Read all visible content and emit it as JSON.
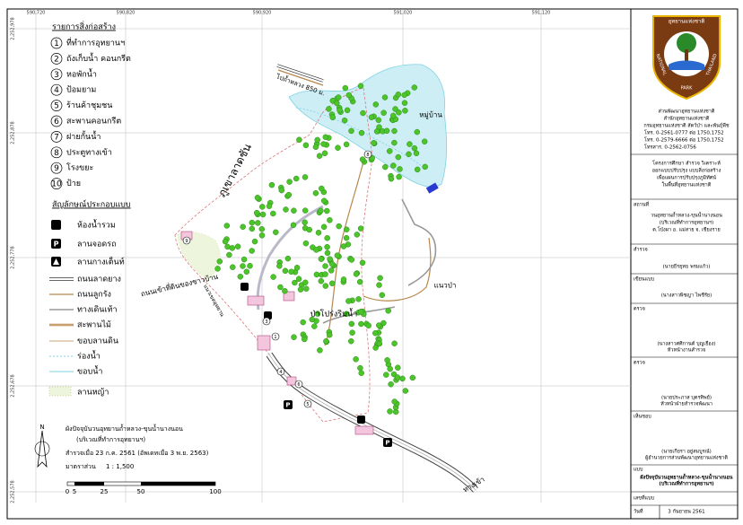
{
  "grid": {
    "x_labels": [
      "590,720",
      "590,820",
      "590,920",
      "591,020",
      "591,120"
    ],
    "y_labels": [
      "2,252,978",
      "2,252,878",
      "2,252,778",
      "2,252,678",
      "2,252,578"
    ]
  },
  "legend_buildings": {
    "title": "รายการสิ่งก่อสร้าง",
    "items": [
      {
        "number": "1",
        "label": "ที่ทำการอุทยานฯ"
      },
      {
        "number": "2",
        "label": "ถังเก็บน้ำ คอนกรีต"
      },
      {
        "number": "3",
        "label": "หอพักน้ำ"
      },
      {
        "number": "4",
        "label": "ป้อมยาม"
      },
      {
        "number": "5",
        "label": "ร้านค้าชุมชน"
      },
      {
        "number": "6",
        "label": "สะพานคอนกรีต"
      },
      {
        "number": "7",
        "label": "ฝายกั้นน้ำ"
      },
      {
        "number": "8",
        "label": "ประตูทางเข้า"
      },
      {
        "number": "9",
        "label": "โรงขยะ"
      },
      {
        "number": "10",
        "label": "ป้าย"
      }
    ]
  },
  "legend_symbols": {
    "title": "สัญลักษณ์ประกอบแบบ",
    "items": [
      "ห้องน้ำรวม",
      "ลานจอดรถ",
      "ลานกางเต็นท์",
      "ถนนลาดยาง",
      "ถนนลูกรัง",
      "ทางเดินเท้า",
      "สะพานไม้",
      "ขอบลานดิน",
      "ร่องน้ำ",
      "ขอบน้ำ",
      "ลานหญ้า"
    ]
  },
  "map_labels": {
    "slope": "ภูเขาลาดชัน",
    "to_cave": "ไปถ้ำหลวง 850 ม.",
    "village": "หมู่บ้าน",
    "forest_edge": "แนวป่า",
    "riparian": "ป่าโปร่งริมน้ำ",
    "private_road": "ถนนเข้าที่ดินของชาวบ้าน",
    "boundary": "แนวเขตอุทยาน",
    "entrance": "ทางเข้า"
  },
  "map_markers": [
    "8",
    "1",
    "3",
    "4",
    "5",
    "6",
    "9"
  ],
  "plan_info": {
    "north": "N",
    "title": "ผังปัจจุบันวนอุทยานถ้ำหลวง-ขุนน้ำนางนอน",
    "subtitle": "(บริเวณที่ทำการอุทยานฯ)",
    "survey_date": "สำรวจเมื่อ 23 ก.ค. 2561 (อัพเดทเมื่อ 3 พ.ย. 2563)",
    "scale_label": "มาตราส่วน",
    "scale_ratio": "1 : 1,500",
    "scale_ticks": [
      "0",
      "5",
      "25",
      "50",
      "100"
    ]
  },
  "title_block": {
    "logo_top": "อุทยานแห่งชาติ",
    "logo_left": "NATIONAL",
    "logo_mid": "PARK",
    "logo_right": "THAILAND",
    "org": [
      "ส่วนพัฒนาอุทยานแห่งชาติ",
      "สำนักอุทยานแห่งชาติ",
      "กรมอุทยานแห่งชาติ สัตว์ป่า และพันธุ์พืช",
      "โทร. 0-2561-0777 ต่อ 1750,1752",
      "โทร. 0-2579-6666 ต่อ 1750,1752",
      "โทรสาร. 0-2562-0756"
    ],
    "project": [
      "โครงการศึกษา สำรวจ วิเคราะห์",
      "ออกแบบปรับปรุง แบบสิ่งก่อสร้าง",
      "เพื่อแผนการปรับปรุงภูมิทัศน์",
      "ในพื้นที่อุทยานแห่งชาติ"
    ],
    "location_label": "สถานที่",
    "location": [
      "วนอุทยานถ้ำหลวง-ขุนน้ำนางนอน",
      "(บริเวณที่ทำการอุทยานฯ)",
      "ต.โป่งผา อ. แม่สาย จ. เชียงราย"
    ],
    "survey_label": "สำรวจ",
    "surveyor": "(นายธีรยุทธ พรมแก้ว)",
    "drawn_label": "เขียนแบบ",
    "drafter": "(นางสาวพิชญา ไพชีรัย)",
    "check1_label": "ตรวจ",
    "checker1": "(นางสาวศศิกานต์ บุญเยือง)",
    "checker1_role": "หัวหน้างานสำรวจ",
    "check2_label": "ตรวจ",
    "checker2": "(นายประภาส บุตรทิพย์)",
    "checker2_role": "หัวหน้าฝ่ายสำรวจพัฒนา",
    "approve_label": "เห็นชอบ",
    "approver": "(นายเกียรา อยู่สมบูรณ์)",
    "approver_role": "ผู้อำนวยการส่วนพัฒนาอุทยานแห่งชาติ",
    "plan_label": "แบบ",
    "plan": [
      "ผังปัจจุบันวนอุทยานถ้ำหลวง-ขุนน้ำนางนอน",
      "(บริเวณที่ทำการอุทยานฯ)"
    ],
    "number_label": "เลขที่แบบ",
    "date_label": "วันที่",
    "date": "3 กันยายน 2561"
  }
}
